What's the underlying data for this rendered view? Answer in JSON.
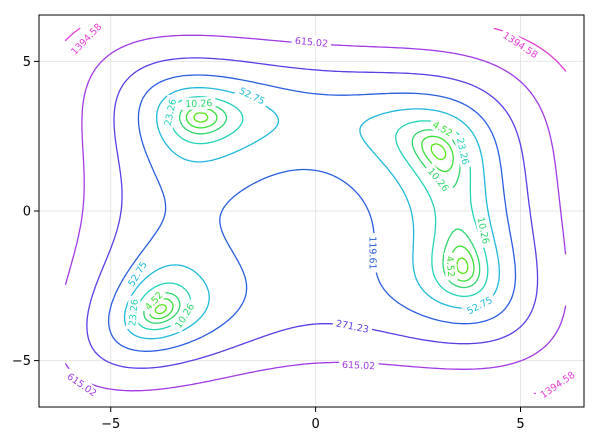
{
  "chart_data": {
    "type": "contour",
    "function": "himmelblau",
    "title": "",
    "xlabel": "",
    "ylabel": "",
    "xlim": [
      -6.75,
      6.55
    ],
    "ylim": [
      -6.55,
      6.55
    ],
    "grid": true,
    "legend": "none",
    "x_ticks": [
      {
        "value": -5,
        "label": "−5"
      },
      {
        "value": 0,
        "label": "0"
      },
      {
        "value": 5,
        "label": "5"
      }
    ],
    "y_ticks": [
      {
        "value": 5,
        "label": "5"
      },
      {
        "value": 0,
        "label": "0"
      },
      {
        "value": -5,
        "label": "−5"
      }
    ],
    "levels": [
      {
        "value": 1,
        "label": "1",
        "color": "#58e51a"
      },
      {
        "value": 4.52,
        "label": "4.52",
        "color": "#3ae03a"
      },
      {
        "value": 10.26,
        "label": "10.26",
        "color": "#2ed66c"
      },
      {
        "value": 23.26,
        "label": "23.26",
        "color": "#22d4b8"
      },
      {
        "value": 52.75,
        "label": "52.75",
        "color": "#1fb9dc"
      },
      {
        "value": 119.61,
        "label": "119.61",
        "color": "#2a5ee0"
      },
      {
        "value": 271.23,
        "label": "271.23",
        "color": "#5a3ee6"
      },
      {
        "value": 615.02,
        "label": "615.02",
        "color": "#a23ae6"
      },
      {
        "value": 1394.58,
        "label": "1394.58",
        "color": "#e63ad8"
      }
    ],
    "contour_labels": [
      {
        "level": 1394.58,
        "x": -5.6,
        "y": 5.75
      },
      {
        "level": 615.02,
        "x": -0.1,
        "y": 5.65
      },
      {
        "level": 1394.58,
        "x": 5.0,
        "y": 5.55
      },
      {
        "level": 52.75,
        "x": -1.55,
        "y": 3.85
      },
      {
        "level": 10.26,
        "x": -2.85,
        "y": 3.6
      },
      {
        "level": 23.26,
        "x": -3.55,
        "y": 3.3
      },
      {
        "level": 4.52,
        "x": 3.1,
        "y": 2.75
      },
      {
        "level": 23.26,
        "x": 3.6,
        "y": 2.0
      },
      {
        "level": 10.26,
        "x": 3.0,
        "y": 1.05
      },
      {
        "level": 119.61,
        "x": 1.4,
        "y": -1.4
      },
      {
        "level": 10.26,
        "x": 4.1,
        "y": -0.65
      },
      {
        "level": 4.52,
        "x": 3.3,
        "y": -1.85
      },
      {
        "level": 52.75,
        "x": -4.35,
        "y": -2.1
      },
      {
        "level": 4.52,
        "x": -3.95,
        "y": -3.0
      },
      {
        "level": 23.26,
        "x": -4.45,
        "y": -3.4
      },
      {
        "level": 10.26,
        "x": -3.2,
        "y": -3.5
      },
      {
        "level": 52.75,
        "x": 4.0,
        "y": -3.15
      },
      {
        "level": 271.23,
        "x": 0.9,
        "y": -3.85
      },
      {
        "level": 615.02,
        "x": 1.05,
        "y": -5.15
      },
      {
        "level": 615.02,
        "x": -5.7,
        "y": -5.8
      },
      {
        "level": 1394.58,
        "x": 5.9,
        "y": -5.8
      }
    ]
  }
}
